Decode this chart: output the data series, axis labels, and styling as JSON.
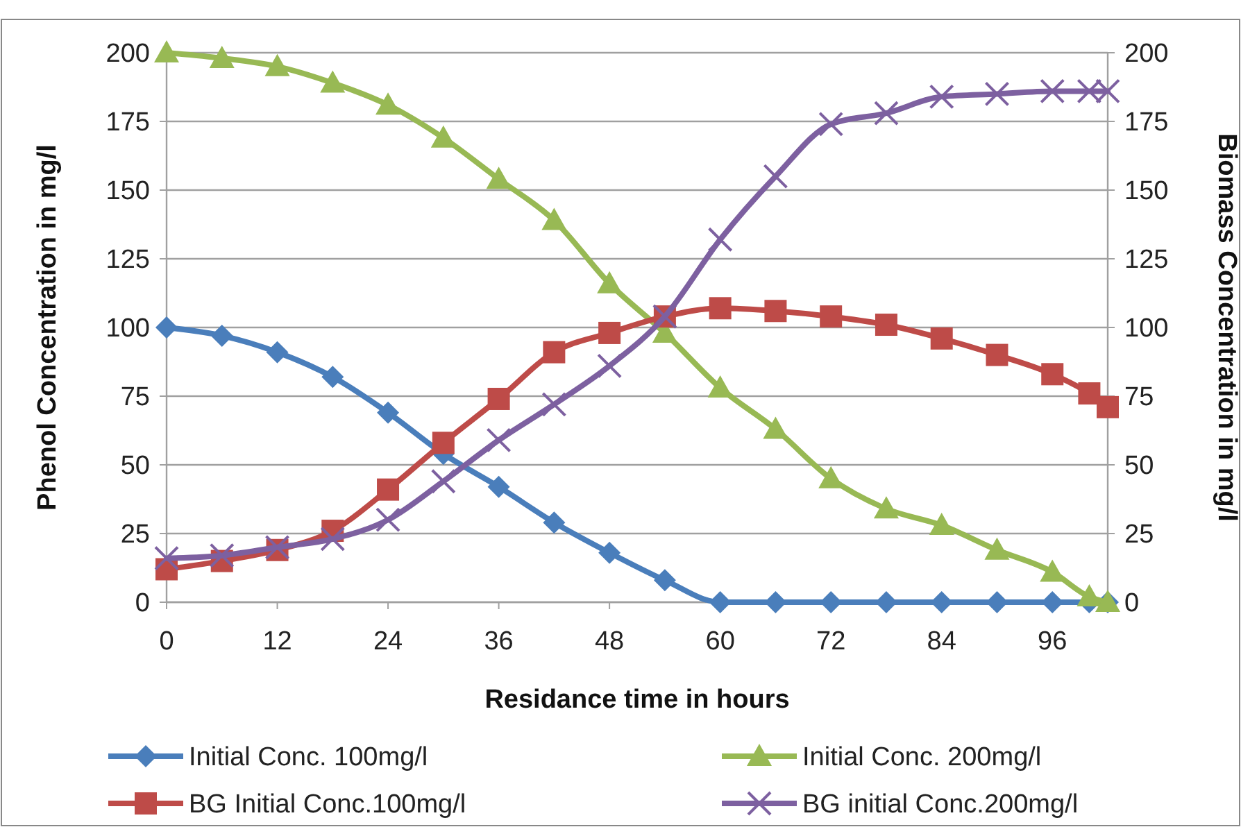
{
  "chart_data": {
    "type": "line",
    "xlabel": "Residance time in hours",
    "ylabel": "Phenol Concentration in mg/l",
    "y2label": "Biomass Concentration in mg/l",
    "x": [
      0,
      6,
      12,
      18,
      24,
      30,
      36,
      42,
      48,
      54,
      60,
      66,
      72,
      78,
      84,
      90,
      96,
      100,
      102
    ],
    "xlim": [
      0,
      102
    ],
    "xticks": [
      0,
      12,
      24,
      36,
      48,
      60,
      72,
      84,
      96
    ],
    "ylim": [
      0,
      200
    ],
    "yticks": [
      0,
      25,
      50,
      75,
      100,
      125,
      150,
      175,
      200
    ],
    "y2lim": [
      0,
      200
    ],
    "y2ticks": [
      0,
      25,
      50,
      75,
      100,
      125,
      150,
      175,
      200
    ],
    "grid": "y",
    "legend": "bottom",
    "series": [
      {
        "name": "Initial Conc. 100mg/l",
        "color": "#4a7ebb",
        "marker": "diamond",
        "values": [
          100,
          97,
          91,
          82,
          69,
          54,
          42,
          29,
          18,
          8,
          0,
          0,
          0,
          0,
          0,
          0,
          0,
          0,
          0
        ]
      },
      {
        "name": "Initial Conc. 200mg/l",
        "color": "#98b954",
        "marker": "triangle",
        "values": [
          200,
          198,
          195,
          189,
          181,
          169,
          154,
          139,
          116,
          98,
          78,
          63,
          45,
          34,
          28,
          19,
          11,
          2,
          0
        ]
      },
      {
        "name": "BG Initial Conc.100mg/l",
        "color": "#be4b48",
        "marker": "square",
        "axis": "y2",
        "values": [
          12,
          15,
          19,
          26,
          41,
          58,
          74,
          91,
          98,
          104,
          107,
          106,
          104,
          101,
          96,
          90,
          83,
          76,
          71
        ]
      },
      {
        "name": "BG initial Conc.200mg/l",
        "color": "#7d60a0",
        "marker": "cross",
        "axis": "y2",
        "values": [
          16,
          17,
          20,
          23,
          30,
          44,
          59,
          72,
          86,
          104,
          132,
          155,
          174,
          178,
          184,
          185,
          186,
          186,
          186
        ]
      }
    ]
  }
}
